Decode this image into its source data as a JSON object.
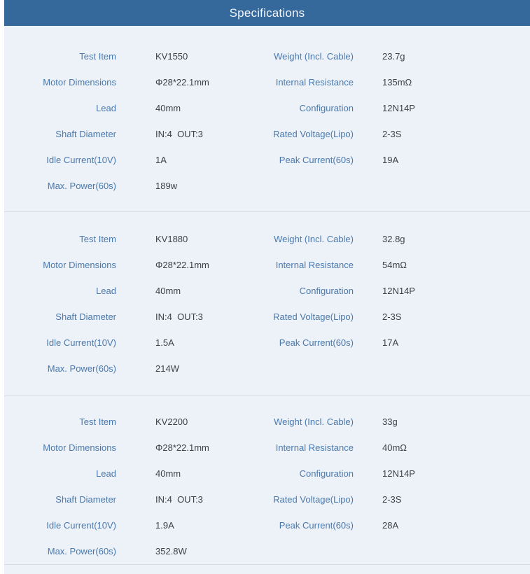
{
  "header": {
    "title": "Specifications"
  },
  "colors": {
    "header_bg": "#35689b",
    "header_fg": "#f2f5f9",
    "section_bg": "#edf1f8",
    "label_fg": "#4a79ad",
    "value_fg": "#3d4247",
    "divider": "#d9dce2"
  },
  "sections": [
    {
      "rows": [
        {
          "cells": [
            {
              "label": "Test Item",
              "value": "KV1550"
            },
            {
              "label": "Weight (Incl. Cable)",
              "value": "23.7g"
            }
          ]
        },
        {
          "cells": [
            {
              "label": "Motor Dimensions",
              "value": "Φ28*22.1mm"
            },
            {
              "label": "Internal Resistance",
              "value": "135mΩ"
            }
          ]
        },
        {
          "cells": [
            {
              "label": "Lead",
              "value": "40mm"
            },
            {
              "label": "Configuration",
              "value": "12N14P"
            }
          ]
        },
        {
          "cells": [
            {
              "label": "Shaft Diameter",
              "value": "IN:4  OUT:3"
            },
            {
              "label": "Rated Voltage(Lipo)",
              "value": "2-3S"
            }
          ]
        },
        {
          "cells": [
            {
              "label": "Idle Current(10V)",
              "value": "1A"
            },
            {
              "label": "Peak Current(60s)",
              "value": "19A"
            }
          ]
        },
        {
          "cells": [
            {
              "label": "Max. Power(60s)",
              "value": "189w"
            }
          ]
        }
      ]
    },
    {
      "rows": [
        {
          "cells": [
            {
              "label": "Test Item",
              "value": "KV1880"
            },
            {
              "label": "Weight (Incl. Cable)",
              "value": "32.8g"
            }
          ]
        },
        {
          "cells": [
            {
              "label": "Motor Dimensions",
              "value": "Φ28*22.1mm"
            },
            {
              "label": "Internal Resistance",
              "value": "54mΩ"
            }
          ]
        },
        {
          "cells": [
            {
              "label": "Lead",
              "value": "40mm"
            },
            {
              "label": "Configuration",
              "value": "12N14P"
            }
          ]
        },
        {
          "cells": [
            {
              "label": "Shaft Diameter",
              "value": "IN:4  OUT:3"
            },
            {
              "label": "Rated Voltage(Lipo)",
              "value": "2-3S"
            }
          ]
        },
        {
          "cells": [
            {
              "label": "Idle Current(10V)",
              "value": "1.5A"
            },
            {
              "label": "Peak Current(60s)",
              "value": "17A"
            }
          ]
        },
        {
          "cells": [
            {
              "label": "Max. Power(60s)",
              "value": "214W"
            }
          ]
        }
      ]
    },
    {
      "rows": [
        {
          "cells": [
            {
              "label": "Test Item",
              "value": "KV2200"
            },
            {
              "label": "Weight (Incl. Cable)",
              "value": "33g"
            }
          ]
        },
        {
          "cells": [
            {
              "label": "Motor Dimensions",
              "value": "Φ28*22.1mm"
            },
            {
              "label": "Internal Resistance",
              "value": "40mΩ"
            }
          ]
        },
        {
          "cells": [
            {
              "label": "Lead",
              "value": "40mm"
            },
            {
              "label": "Configuration",
              "value": "12N14P"
            }
          ]
        },
        {
          "cells": [
            {
              "label": "Shaft Diameter",
              "value": "IN:4  OUT:3"
            },
            {
              "label": "Rated Voltage(Lipo)",
              "value": "2-3S"
            }
          ]
        },
        {
          "cells": [
            {
              "label": "Idle Current(10V)",
              "value": "1.9A"
            },
            {
              "label": "Peak Current(60s)",
              "value": "28A"
            }
          ]
        },
        {
          "cells": [
            {
              "label": "Max. Power(60s)",
              "value": "352.8W"
            }
          ]
        }
      ]
    }
  ]
}
